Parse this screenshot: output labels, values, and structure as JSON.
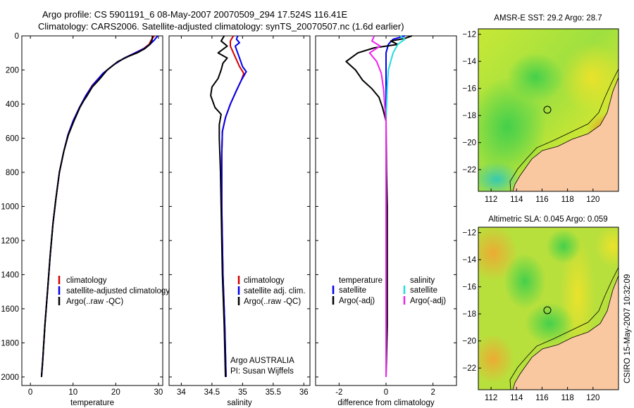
{
  "page": {
    "title_line1": "Argo profile: CS 5901191_6 08-May-2007 20070509_294 17.524S 116.41E",
    "title_line2": "Climatology: CARS2006. Satellite-adjusted climatology: synTS_20070507.nc (1.6d earlier)",
    "side_stamp": "CSIRO 15-May-2007 10:32:09",
    "credit_line1": "Argo AUSTRALIA",
    "credit_line2": "PI: Susan Wijffels"
  },
  "colors": {
    "climatology": "#d40000",
    "satellite_adjusted": "#0000ee",
    "argo": "#000000",
    "salinity_satellite": "#22dddd",
    "salinity_argo_adj": "#ee22ee",
    "land": "#f9c8a0"
  },
  "chart_data": [
    {
      "id": "temperature",
      "type": "line",
      "xlabel": "temperature",
      "ylabel": "",
      "xlim": [
        -2,
        31
      ],
      "ylim": [
        2050,
        0
      ],
      "y_inverted": true,
      "xticks": [
        0,
        10,
        20,
        30
      ],
      "yticks": [
        0,
        200,
        400,
        600,
        800,
        1000,
        1200,
        1400,
        1600,
        1800,
        2000
      ],
      "legend": [
        "climatology",
        "satellite-adjusted climatology",
        "Argo(..raw -QC)"
      ],
      "series": [
        {
          "name": "climatology",
          "color": "#d40000",
          "points": [
            [
              29,
              0
            ],
            [
              28.3,
              25
            ],
            [
              27.8,
              50
            ],
            [
              26.5,
              75
            ],
            [
              24.5,
              100
            ],
            [
              22,
              130
            ],
            [
              19.5,
              170
            ],
            [
              17,
              220
            ],
            [
              14.5,
              290
            ],
            [
              13,
              350
            ],
            [
              11.5,
              420
            ],
            [
              10,
              500
            ],
            [
              8.8,
              580
            ],
            [
              7.8,
              680
            ],
            [
              6.8,
              800
            ],
            [
              6,
              950
            ],
            [
              5.3,
              1100
            ],
            [
              4.6,
              1300
            ],
            [
              4,
              1500
            ],
            [
              3.4,
              1700
            ],
            [
              2.9,
              1900
            ],
            [
              2.6,
              2000
            ]
          ]
        },
        {
          "name": "satellite-adjusted climatology",
          "color": "#0000ee",
          "points": [
            [
              29.8,
              0
            ],
            [
              29,
              25
            ],
            [
              28,
              50
            ],
            [
              26.6,
              75
            ],
            [
              24.6,
              100
            ],
            [
              22,
              130
            ],
            [
              19.5,
              170
            ],
            [
              17,
              220
            ],
            [
              14.6,
              290
            ],
            [
              13,
              350
            ],
            [
              11.5,
              420
            ],
            [
              10,
              500
            ],
            [
              8.8,
              580
            ],
            [
              7.8,
              680
            ],
            [
              6.8,
              800
            ],
            [
              6,
              950
            ],
            [
              5.3,
              1100
            ],
            [
              4.6,
              1300
            ],
            [
              4,
              1500
            ],
            [
              3.4,
              1700
            ],
            [
              2.9,
              1900
            ],
            [
              2.6,
              2000
            ]
          ]
        },
        {
          "name": "Argo(..raw -QC)",
          "color": "#000000",
          "points": [
            [
              28.6,
              0
            ],
            [
              28.5,
              25
            ],
            [
              28,
              50
            ],
            [
              26.8,
              75
            ],
            [
              25,
              100
            ],
            [
              23,
              120
            ],
            [
              20.5,
              150
            ],
            [
              18,
              200
            ],
            [
              16,
              260
            ],
            [
              14.5,
              300
            ],
            [
              13.3,
              350
            ],
            [
              12.5,
              380
            ],
            [
              11.6,
              420
            ],
            [
              10.2,
              500
            ],
            [
              8.9,
              580
            ],
            [
              7.8,
              680
            ],
            [
              6.8,
              800
            ],
            [
              6,
              950
            ],
            [
              5.3,
              1100
            ],
            [
              4.6,
              1300
            ],
            [
              4,
              1500
            ],
            [
              3.4,
              1700
            ],
            [
              2.9,
              1900
            ],
            [
              2.6,
              2000
            ]
          ]
        }
      ]
    },
    {
      "id": "salinity",
      "type": "line",
      "xlabel": "salinity",
      "ylabel": "",
      "xlim": [
        33.8,
        36.1
      ],
      "ylim": [
        2050,
        0
      ],
      "y_inverted": true,
      "xticks": [
        34,
        34.5,
        35,
        35.5,
        36
      ],
      "legend": [
        "climatology",
        "satellite adj. clim.",
        "Argo(..raw -QC)"
      ],
      "series": [
        {
          "name": "climatology",
          "color": "#d40000",
          "points": [
            [
              34.85,
              0
            ],
            [
              34.8,
              30
            ],
            [
              34.8,
              60
            ],
            [
              34.85,
              100
            ],
            [
              34.9,
              140
            ],
            [
              34.95,
              180
            ],
            [
              35.02,
              220
            ],
            [
              34.98,
              260
            ],
            [
              34.9,
              320
            ],
            [
              34.8,
              400
            ],
            [
              34.72,
              480
            ],
            [
              34.67,
              560
            ],
            [
              34.66,
              700
            ],
            [
              34.66,
              1000
            ],
            [
              34.68,
              1400
            ],
            [
              34.71,
              1700
            ],
            [
              34.73,
              2000
            ]
          ]
        },
        {
          "name": "satellite adj. clim.",
          "color": "#0000ee",
          "points": [
            [
              34.92,
              0
            ],
            [
              34.9,
              20
            ],
            [
              34.95,
              40
            ],
            [
              34.88,
              60
            ],
            [
              34.92,
              100
            ],
            [
              34.96,
              140
            ],
            [
              35.0,
              180
            ],
            [
              35.06,
              210
            ],
            [
              34.98,
              260
            ],
            [
              34.9,
              320
            ],
            [
              34.8,
              400
            ],
            [
              34.72,
              480
            ],
            [
              34.67,
              560
            ],
            [
              34.66,
              700
            ],
            [
              34.66,
              1000
            ],
            [
              34.68,
              1400
            ],
            [
              34.71,
              1700
            ],
            [
              34.73,
              2000
            ]
          ]
        },
        {
          "name": "Argo(..raw -QC)",
          "color": "#000000",
          "points": [
            [
              34.7,
              0
            ],
            [
              34.65,
              30
            ],
            [
              34.75,
              60
            ],
            [
              34.6,
              100
            ],
            [
              34.75,
              130
            ],
            [
              34.68,
              160
            ],
            [
              34.65,
              200
            ],
            [
              34.6,
              250
            ],
            [
              34.5,
              300
            ],
            [
              34.48,
              350
            ],
            [
              34.55,
              420
            ],
            [
              34.65,
              460
            ],
            [
              34.62,
              520
            ],
            [
              34.62,
              600
            ],
            [
              34.64,
              800
            ],
            [
              34.65,
              1000
            ],
            [
              34.67,
              1400
            ],
            [
              34.7,
              1700
            ],
            [
              34.72,
              2000
            ]
          ]
        }
      ]
    },
    {
      "id": "difference",
      "type": "line",
      "xlabel": "difference from climatology",
      "ylabel": "",
      "xlim": [
        -3,
        3
      ],
      "ylim": [
        2050,
        0
      ],
      "y_inverted": true,
      "xticks": [
        -2,
        0,
        2
      ],
      "legend_left_title": "temperature",
      "legend_right_title": "salinity",
      "legend_left": [
        "satellite",
        "Argo(-adj)"
      ],
      "legend_right": [
        "satellite",
        "Argo(-adj)"
      ],
      "series": [
        {
          "name": "temperature satellite",
          "color": "#0000ee",
          "points": [
            [
              0.8,
              0
            ],
            [
              0.3,
              20
            ],
            [
              0.1,
              50
            ],
            [
              0,
              100
            ],
            [
              0,
              400
            ],
            [
              0,
              2000
            ]
          ]
        },
        {
          "name": "temperature Argo(-adj)",
          "color": "#000000",
          "points": [
            [
              1.1,
              0
            ],
            [
              0.8,
              15
            ],
            [
              0.2,
              30
            ],
            [
              0.5,
              50
            ],
            [
              -0.5,
              70
            ],
            [
              -1.2,
              100
            ],
            [
              -1.7,
              150
            ],
            [
              -1.3,
              200
            ],
            [
              -1.0,
              260
            ],
            [
              -0.6,
              310
            ],
            [
              -0.3,
              360
            ],
            [
              -0.15,
              420
            ],
            [
              0,
              500
            ],
            [
              0.02,
              800
            ],
            [
              0.05,
              1000
            ],
            [
              0.05,
              1700
            ],
            [
              0,
              2000
            ]
          ]
        },
        {
          "name": "salinity satellite",
          "color": "#22dddd",
          "points": [
            [
              0.6,
              0
            ],
            [
              0.8,
              20
            ],
            [
              0.5,
              50
            ],
            [
              0.3,
              100
            ],
            [
              0.1,
              200
            ],
            [
              0.05,
              300
            ],
            [
              0,
              500
            ],
            [
              0,
              2000
            ]
          ]
        },
        {
          "name": "salinity Argo(-adj)",
          "color": "#ee22ee",
          "points": [
            [
              -0.5,
              0
            ],
            [
              -0.6,
              30
            ],
            [
              -0.25,
              60
            ],
            [
              -0.7,
              100
            ],
            [
              -0.4,
              150
            ],
            [
              -0.2,
              220
            ],
            [
              -0.1,
              320
            ],
            [
              -0.05,
              420
            ],
            [
              0,
              500
            ],
            [
              0,
              2000
            ]
          ]
        }
      ]
    },
    {
      "id": "sst_map",
      "type": "heatmap",
      "title": "AMSR-E SST: 29.2 Argo: 28.7",
      "xlim": [
        111,
        122
      ],
      "ylim": [
        -23.6,
        -11.6
      ],
      "xticks": [
        112,
        114,
        116,
        118,
        120
      ],
      "yticks": [
        -12,
        -14,
        -16,
        -18,
        -20,
        -22
      ],
      "argo_position": [
        116.41,
        -17.524
      ]
    },
    {
      "id": "sla_map",
      "type": "heatmap",
      "title": "Altimetric SLA: 0.045 Argo: 0.059",
      "xlim": [
        111,
        122
      ],
      "ylim": [
        -23.6,
        -11.6
      ],
      "xticks": [
        112,
        114,
        116,
        118,
        120
      ],
      "yticks": [
        -12,
        -14,
        -16,
        -18,
        -20,
        -22
      ],
      "argo_position": [
        116.41,
        -17.524
      ]
    }
  ]
}
